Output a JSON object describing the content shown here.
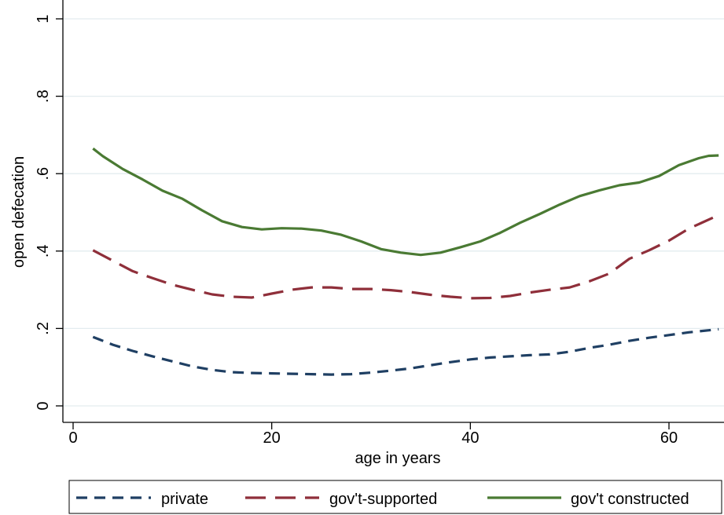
{
  "chart_data": {
    "type": "line",
    "xlabel": "age in years",
    "ylabel": "open defecation",
    "xlim": [
      -2,
      65
    ],
    "ylim": [
      -0.02,
      1.02
    ],
    "x_ticks": [
      0,
      20,
      40,
      60
    ],
    "x_tick_labels": [
      "0",
      "20",
      "40",
      "60"
    ],
    "y_ticks": [
      0,
      0.2,
      0.4,
      0.6,
      0.8,
      1
    ],
    "y_tick_labels": [
      "0",
      ".2",
      ".4",
      ".6",
      ".8",
      "1"
    ],
    "grid": "horizontal",
    "legend_position": "bottom",
    "series": [
      {
        "name": "private",
        "color": "#1f3f63",
        "dash": "short-dash",
        "x": [
          2,
          4,
          6,
          8,
          10,
          12,
          14,
          16,
          18,
          20,
          22,
          24,
          26,
          28,
          30,
          32,
          34,
          36,
          38,
          40,
          42,
          44,
          46,
          48,
          50,
          52,
          54,
          56,
          58,
          60,
          62,
          65
        ],
        "y": [
          0.178,
          0.158,
          0.142,
          0.128,
          0.115,
          0.102,
          0.093,
          0.087,
          0.085,
          0.084,
          0.083,
          0.082,
          0.081,
          0.082,
          0.086,
          0.091,
          0.097,
          0.105,
          0.113,
          0.12,
          0.125,
          0.128,
          0.131,
          0.133,
          0.14,
          0.15,
          0.158,
          0.168,
          0.176,
          0.183,
          0.19,
          0.198
        ]
      },
      {
        "name": "gov't-supported",
        "color": "#8f2f3a",
        "dash": "long-dash",
        "x": [
          2,
          4,
          6,
          8,
          10,
          12,
          14,
          16,
          18,
          20,
          22,
          24,
          26,
          28,
          30,
          32,
          34,
          36,
          38,
          40,
          42,
          44,
          46,
          48,
          50,
          52,
          54,
          56,
          58,
          60,
          62,
          65
        ],
        "y": [
          0.402,
          0.375,
          0.348,
          0.33,
          0.313,
          0.3,
          0.288,
          0.282,
          0.28,
          0.29,
          0.3,
          0.306,
          0.306,
          0.302,
          0.302,
          0.299,
          0.294,
          0.287,
          0.282,
          0.278,
          0.279,
          0.284,
          0.293,
          0.3,
          0.306,
          0.322,
          0.342,
          0.38,
          0.402,
          0.427,
          0.458,
          0.493
        ]
      },
      {
        "name": "gov't constructed",
        "color": "#4a7a33",
        "dash": "solid",
        "x": [
          2,
          3,
          5,
          7,
          9,
          11,
          13,
          15,
          17,
          19,
          21,
          23,
          25,
          27,
          29,
          31,
          33,
          35,
          37,
          39,
          41,
          43,
          45,
          47,
          49,
          51,
          53,
          55,
          57,
          59,
          61,
          63,
          64,
          65
        ],
        "y": [
          0.665,
          0.645,
          0.612,
          0.585,
          0.556,
          0.535,
          0.505,
          0.477,
          0.462,
          0.456,
          0.459,
          0.458,
          0.453,
          0.442,
          0.425,
          0.405,
          0.396,
          0.39,
          0.396,
          0.41,
          0.425,
          0.447,
          0.473,
          0.496,
          0.52,
          0.542,
          0.557,
          0.57,
          0.577,
          0.594,
          0.622,
          0.64,
          0.646,
          0.647
        ]
      }
    ]
  }
}
